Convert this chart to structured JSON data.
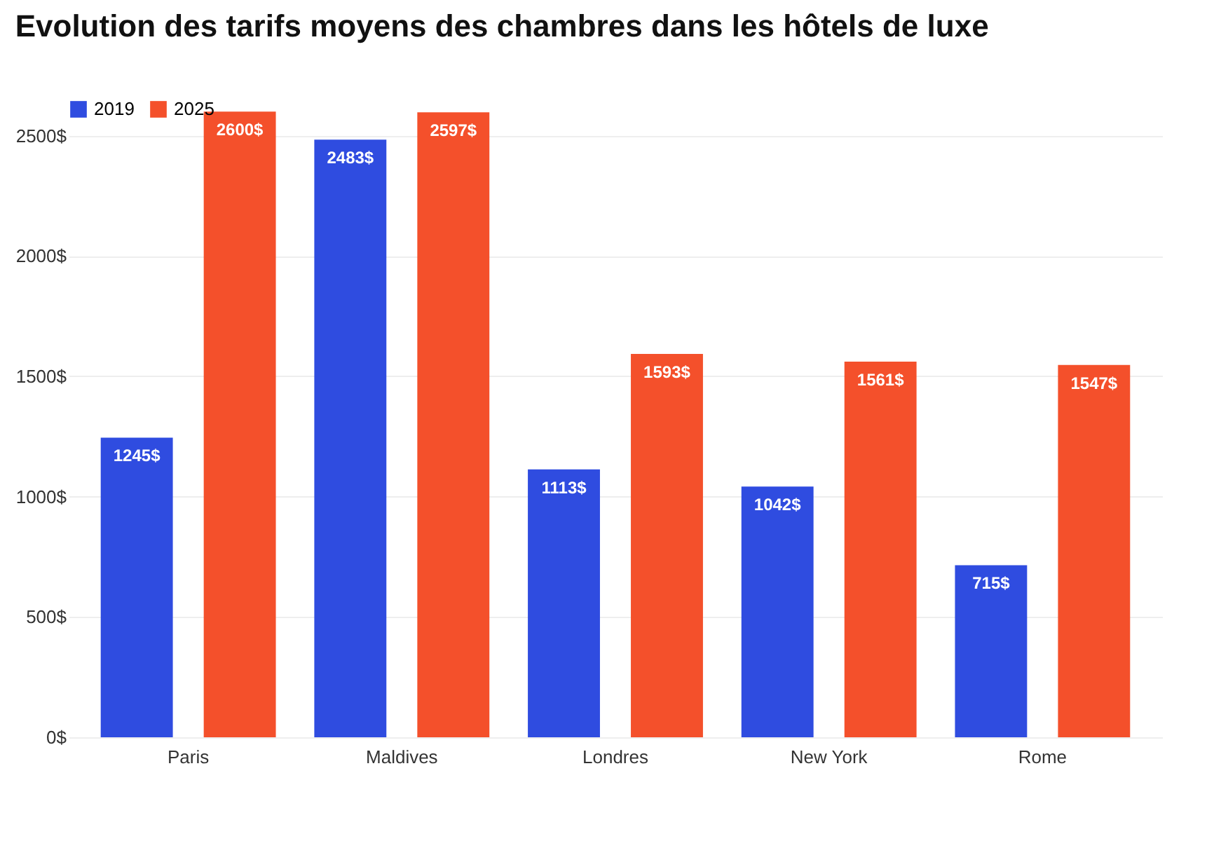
{
  "chart_data": {
    "type": "bar",
    "title": "Evolution des tarifs moyens des chambres dans les hôtels de luxe",
    "categories": [
      "Paris",
      "Maldives",
      "Londres",
      "New York",
      "Rome"
    ],
    "series": [
      {
        "name": "2019",
        "color": "#2f4ce0",
        "values": [
          1245,
          2483,
          1113,
          1042,
          715
        ],
        "value_labels": [
          "1245$",
          "2483$",
          "1113$",
          "1042$",
          "715$"
        ]
      },
      {
        "name": "2025",
        "color": "#f4502b",
        "values": [
          2600,
          2597,
          1593,
          1561,
          1547
        ],
        "value_labels": [
          "2600$",
          "2597$",
          "1593$",
          "1561$",
          "1547$"
        ]
      }
    ],
    "ylim": [
      0,
      2650
    ],
    "yticks": [
      {
        "value": 0,
        "label": "0$"
      },
      {
        "value": 500,
        "label": "500$"
      },
      {
        "value": 1000,
        "label": "1000$"
      },
      {
        "value": 1500,
        "label": "1500$"
      },
      {
        "value": 2000,
        "label": "2000$"
      },
      {
        "value": 2500,
        "label": "2500$"
      }
    ],
    "grid": "y",
    "legend": "top left"
  }
}
